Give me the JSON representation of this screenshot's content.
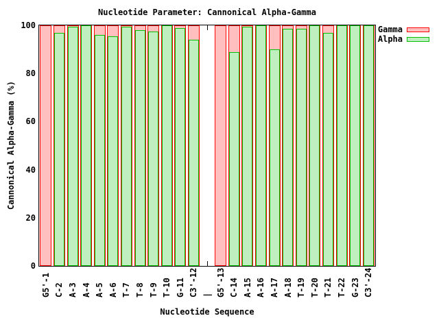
{
  "title": "Nucleotide Parameter: Cannonical Alpha-Gamma",
  "colors": {
    "background": "#ffffff",
    "axis": "#000000",
    "gamma_border": "#ff0000",
    "gamma_fill": "#ffbfbf",
    "alpha_border": "#00c000",
    "alpha_fill": "#bfefbf"
  },
  "chart_data": {
    "type": "bar",
    "bar_style": "overlaid",
    "title": "Nucleotide Parameter: Cannonical Alpha-Gamma",
    "xlabel": "Nucleotide Sequence",
    "ylabel": "Cannonical Alpha-Gamma (%)",
    "ylim": [
      0,
      100
    ],
    "yticks": [
      0,
      20,
      40,
      60,
      80,
      100
    ],
    "grid": false,
    "legend_position": "top-right",
    "gap_category": "|",
    "categories": [
      "G5'-1",
      "C-2",
      "A-3",
      "A-4",
      "A-5",
      "A-6",
      "T-7",
      "T-8",
      "T-9",
      "T-10",
      "G-11",
      "C3'-12",
      "|",
      "G5'-13",
      "C-14",
      "A-15",
      "A-16",
      "A-17",
      "A-18",
      "T-19",
      "T-20",
      "T-21",
      "T-22",
      "G-23",
      "C3'-24"
    ],
    "series": [
      {
        "name": "Gamma",
        "border_color": "#ff0000",
        "fill_color": "#ffbfbf",
        "values": [
          100,
          100,
          100,
          100,
          100,
          100,
          100,
          100,
          100,
          100,
          100,
          100,
          null,
          100,
          100,
          100,
          100,
          100,
          100,
          100,
          100,
          100,
          100,
          100,
          100
        ]
      },
      {
        "name": "Alpha",
        "border_color": "#00c000",
        "fill_color": "#bfefbf",
        "values": [
          0,
          97,
          99.5,
          100,
          96,
          95.5,
          99.5,
          98,
          97.5,
          100,
          99,
          94,
          null,
          0,
          89,
          99.5,
          100,
          90,
          98.5,
          98.5,
          100,
          97,
          100,
          100,
          100
        ]
      }
    ]
  }
}
